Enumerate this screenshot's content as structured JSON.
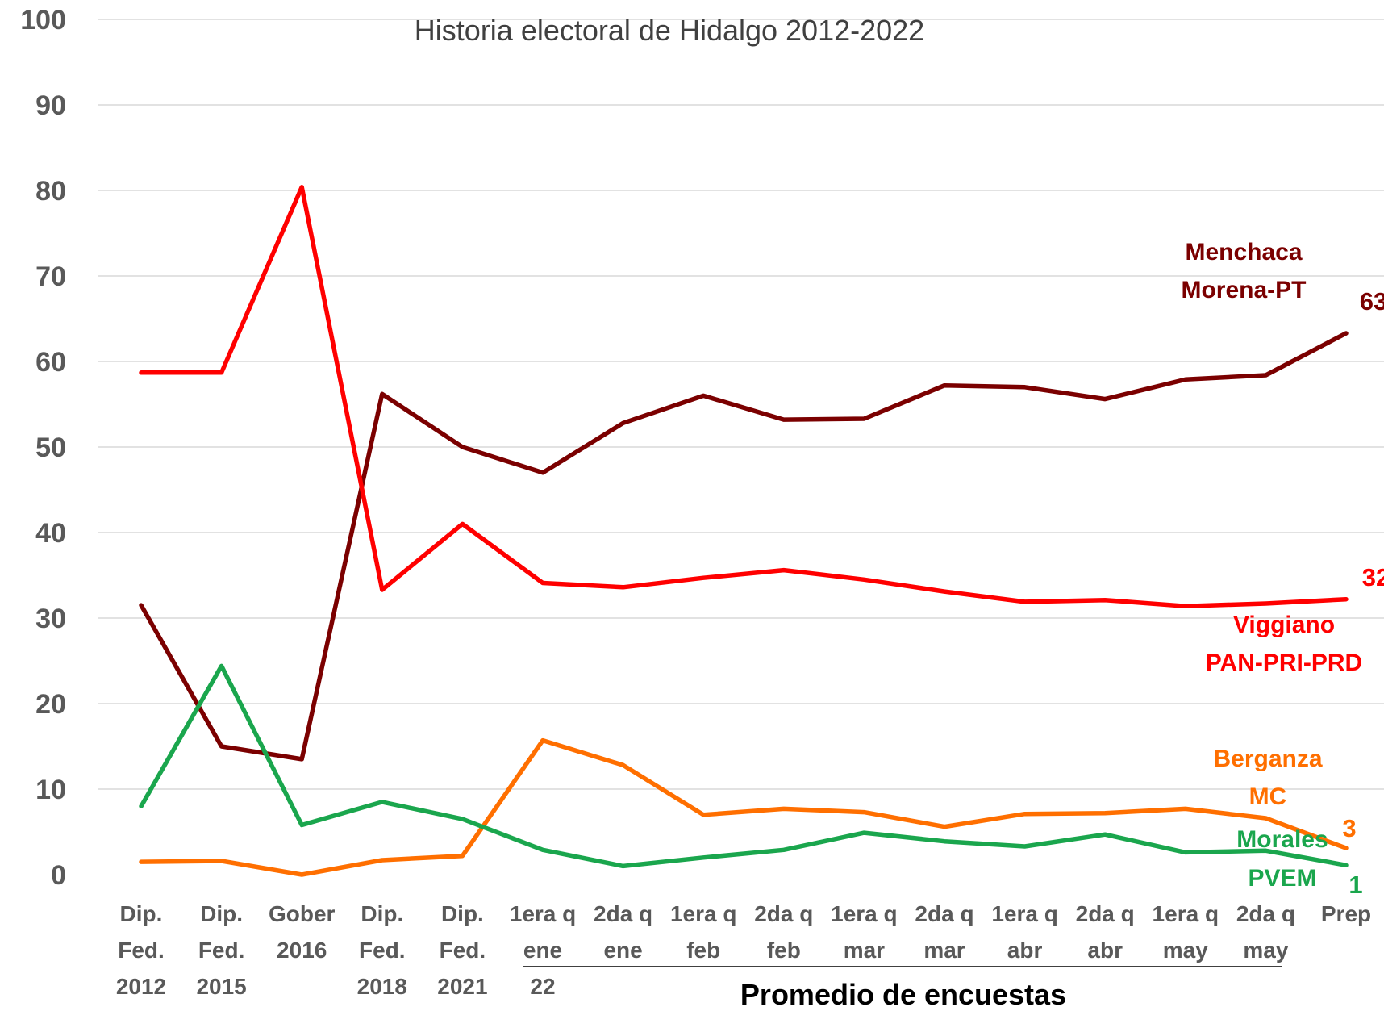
{
  "chart_data": {
    "type": "line",
    "title": "Historia electoral de Hidalgo 2012-2022",
    "subtitle": "Promedio de encuestas",
    "ylim": [
      0,
      100
    ],
    "yticks": [
      "0",
      "10",
      "20",
      "30",
      "40",
      "50",
      "60",
      "70",
      "80",
      "90",
      "100"
    ],
    "grid": true,
    "categories": [
      [
        "Dip.",
        "Fed.",
        "2012"
      ],
      [
        "Dip.",
        "Fed.",
        "2015"
      ],
      [
        "Gober",
        "2016"
      ],
      [
        "Dip.",
        "Fed.",
        "2018"
      ],
      [
        "Dip.",
        "Fed.",
        "2021"
      ],
      [
        "1era q",
        "ene",
        "22"
      ],
      [
        "2da q",
        "ene"
      ],
      [
        "1era q",
        "feb"
      ],
      [
        "2da q",
        "feb"
      ],
      [
        "1era q",
        "mar"
      ],
      [
        "2da q",
        "mar"
      ],
      [
        "1era q",
        "abr"
      ],
      [
        "2da q",
        "abr"
      ],
      [
        "1era q",
        "may"
      ],
      [
        "2da q",
        "may"
      ],
      [
        "Prep"
      ]
    ],
    "series": [
      {
        "color": "#7b0000",
        "labels": [
          "Menchaca",
          "Morena-PT"
        ],
        "end_label": "63",
        "values": [
          31.5,
          15,
          13.5,
          56.2,
          50,
          47,
          52.8,
          56,
          53.2,
          53.3,
          57.2,
          57,
          55.6,
          57.9,
          58.4,
          63.3
        ]
      },
      {
        "color": "#ff0000",
        "labels": [
          "Viggiano",
          "PAN-PRI-PRD"
        ],
        "end_label": "32",
        "values": [
          58.7,
          58.7,
          80.4,
          33.3,
          41,
          34.1,
          33.6,
          34.7,
          35.6,
          34.5,
          33.1,
          31.9,
          32.1,
          31.4,
          31.7,
          32.2
        ]
      },
      {
        "color": "#ff6f00",
        "labels": [
          "Berganza",
          "MC"
        ],
        "end_label": "3",
        "values": [
          1.5,
          1.6,
          0,
          1.7,
          2.2,
          15.7,
          12.8,
          7,
          7.7,
          7.3,
          5.6,
          7.1,
          7.2,
          7.7,
          6.6,
          3.1
        ]
      },
      {
        "color": "#1aa64d",
        "labels": [
          "Morales",
          "PVEM"
        ],
        "end_label": "1",
        "values": [
          8,
          24.4,
          5.8,
          8.5,
          6.5,
          2.9,
          1,
          2,
          2.9,
          4.9,
          3.9,
          3.3,
          4.7,
          2.6,
          2.8,
          1.1
        ]
      }
    ]
  }
}
